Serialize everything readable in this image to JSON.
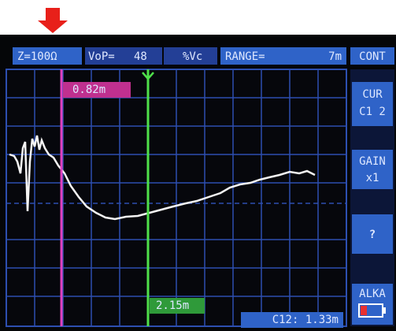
{
  "top_bar": {
    "impedance": "Z=100Ω",
    "vop_label": "VoP=",
    "vop_value": "48",
    "vop_unit": "%Vc",
    "range_label": "RANGE=",
    "range_value": "7m",
    "mode": "CONT"
  },
  "side_panel": {
    "cursor_label": "CUR",
    "cursor_value": "C1 2",
    "gain_label": "GAIN",
    "gain_value": "x1",
    "help": "?",
    "battery": "ALKA"
  },
  "cursors": {
    "c1": "0.82m",
    "c2": "2.15m",
    "difference": "C12: 1.33m"
  }
}
